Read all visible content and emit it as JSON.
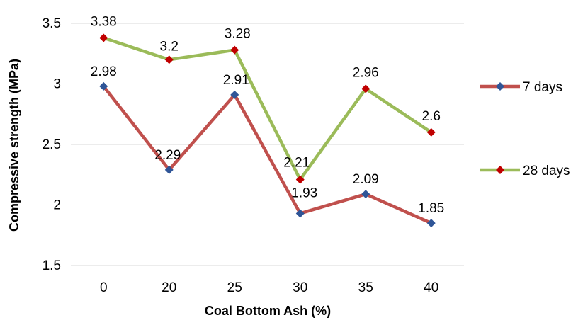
{
  "chart_data": {
    "type": "line",
    "title": "",
    "xlabel": "Coal Bottom Ash (%)",
    "ylabel": "Compressive strength (MPa)",
    "categories": [
      "0",
      "20",
      "25",
      "30",
      "35",
      "40"
    ],
    "ylim": [
      1.5,
      3.5
    ],
    "yticks": [
      "1.5",
      "2",
      "2.5",
      "3",
      "3.5"
    ],
    "grid": true,
    "legend_position": "right",
    "series": [
      {
        "name": "7 days",
        "values": [
          2.98,
          2.29,
          2.91,
          1.93,
          2.09,
          1.85
        ],
        "labels": [
          "2.98",
          "2.29",
          "2.91",
          "1.93",
          "2.09",
          "1.85"
        ],
        "line_color": "#c0504d",
        "marker_color": "#2f5597"
      },
      {
        "name": "28 days",
        "values": [
          3.38,
          3.2,
          3.28,
          2.21,
          2.96,
          2.6
        ],
        "labels": [
          "3.38",
          "3.2",
          "3.28",
          "2.21",
          "2.96",
          "2.6"
        ],
        "line_color": "#9bbb59",
        "marker_color": "#c00000"
      }
    ]
  }
}
